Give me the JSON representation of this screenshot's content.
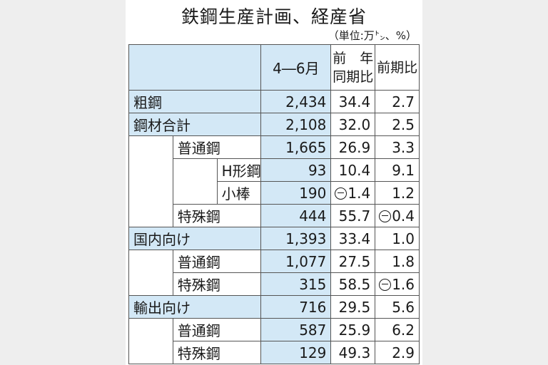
{
  "title": "鉄鋼生産計画、経産省",
  "unit": "（単位:万㌧、%）",
  "headers": {
    "period": "4―6月",
    "yoy_line1": "前　年",
    "yoy_line2": "同期比",
    "qoq": "前期比"
  },
  "rows": [
    {
      "label": "粗鋼",
      "value": "2,434",
      "yoy": "34.4",
      "qoq": "2.7",
      "yoy_negative": false,
      "qoq_negative": false
    },
    {
      "label": "鋼材合計",
      "value": "2,108",
      "yoy": "32.0",
      "qoq": "2.5",
      "yoy_negative": false,
      "qoq_negative": false
    },
    {
      "label": "普通鋼",
      "value": "1,665",
      "yoy": "26.9",
      "qoq": "3.3",
      "yoy_negative": false,
      "qoq_negative": false
    },
    {
      "label": "H形鋼",
      "value": "93",
      "yoy": "10.4",
      "qoq": "9.1",
      "yoy_negative": false,
      "qoq_negative": false
    },
    {
      "label": "小棒",
      "value": "190",
      "yoy": "1.4",
      "qoq": "1.2",
      "yoy_negative": true,
      "qoq_negative": false
    },
    {
      "label": "特殊鋼",
      "value": "444",
      "yoy": "55.7",
      "qoq": "0.4",
      "yoy_negative": false,
      "qoq_negative": true
    },
    {
      "label": "国内向け",
      "value": "1,393",
      "yoy": "33.4",
      "qoq": "1.0",
      "yoy_negative": false,
      "qoq_negative": false
    },
    {
      "label": "普通鋼",
      "value": "1,077",
      "yoy": "27.5",
      "qoq": "1.8",
      "yoy_negative": false,
      "qoq_negative": false
    },
    {
      "label": "特殊鋼",
      "value": "315",
      "yoy": "58.5",
      "qoq": "1.6",
      "yoy_negative": false,
      "qoq_negative": true
    },
    {
      "label": "輸出向け",
      "value": "716",
      "yoy": "29.5",
      "qoq": "5.6",
      "yoy_negative": false,
      "qoq_negative": false
    },
    {
      "label": "普通鋼",
      "value": "587",
      "yoy": "25.9",
      "qoq": "6.2",
      "yoy_negative": false,
      "qoq_negative": false
    },
    {
      "label": "特殊鋼",
      "value": "129",
      "yoy": "49.3",
      "qoq": "2.9",
      "yoy_negative": false,
      "qoq_negative": false
    }
  ],
  "colors": {
    "highlight": "#d3e8f6",
    "text": "#1a1a1a",
    "border": "#555555"
  }
}
